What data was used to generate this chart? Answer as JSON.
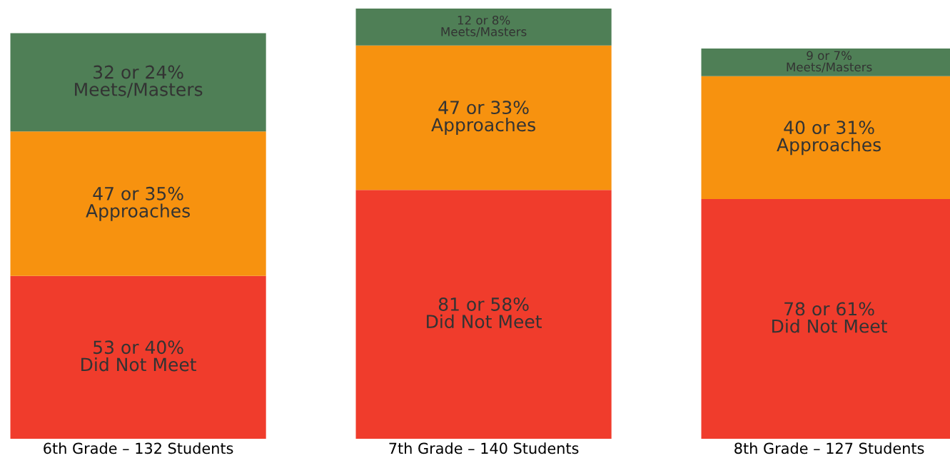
{
  "chart_data": {
    "type": "bar",
    "stacked": true,
    "categories": [
      "6th Grade – 132 Students",
      "7th Grade – 140 Students",
      "8th Grade – 127 Students"
    ],
    "series": [
      {
        "name": "Did Not Meet",
        "color": "#f03c2c",
        "values": [
          53,
          81,
          78
        ],
        "value_labels": [
          "53 or 40%",
          "81 or 58%",
          "78 or 61%"
        ]
      },
      {
        "name": "Approaches",
        "color": "#f7920f",
        "values": [
          47,
          47,
          40
        ],
        "value_labels": [
          "47 or 35%",
          "47 or 33%",
          "40 or 31%"
        ]
      },
      {
        "name": "Meets/Masters",
        "color": "#4f7f56",
        "values": [
          32,
          12,
          9
        ],
        "value_labels": [
          "32 or 24%",
          "12 or 8%",
          "9 or 7%"
        ]
      }
    ],
    "ylim": [
      0,
      140
    ],
    "tick_labels": "x",
    "grid": false,
    "legend": false
  }
}
